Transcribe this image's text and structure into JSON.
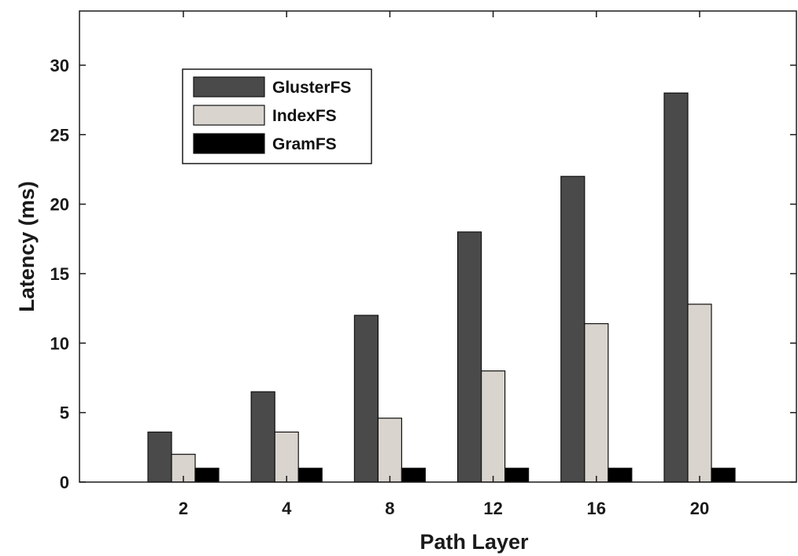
{
  "chart_data": {
    "type": "bar",
    "categories": [
      "2",
      "4",
      "8",
      "12",
      "16",
      "20"
    ],
    "series": [
      {
        "name": "GlusterFS",
        "color": "#4a4a4a",
        "values": [
          3.6,
          6.5,
          12.0,
          18.0,
          22.0,
          28.0
        ]
      },
      {
        "name": "IndexFS",
        "color": "#d9d5ce",
        "values": [
          2.0,
          3.6,
          4.6,
          8.0,
          11.4,
          12.8
        ]
      },
      {
        "name": "GramFS",
        "color": "#000000",
        "values": [
          1.0,
          1.0,
          1.0,
          1.0,
          1.0,
          1.0
        ]
      }
    ],
    "xlabel": "Path Layer",
    "ylabel": "Latency (ms)",
    "ylim": [
      0,
      30
    ],
    "yticks": [
      "0",
      "5",
      "10",
      "15",
      "20",
      "25",
      "30"
    ],
    "grid": false,
    "legend_position": "top-left"
  }
}
